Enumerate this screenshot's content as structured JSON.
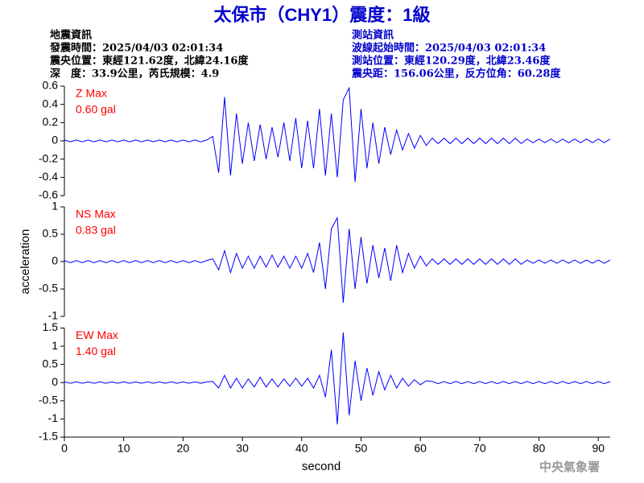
{
  "title": "太保市（CHY1）震度：1級",
  "info_left": [
    "地震資訊",
    "發震時間：2025/04/03 02:01:34",
    "震央位置：東經121.62度，北緯24.16度",
    "深　度：33.9公里，芮氏規模：4.9"
  ],
  "info_right": [
    "測站資訊",
    "波線起始時間：2025/04/03 02:01:34",
    "測站位置：東經120.29度，北緯23.46度",
    "震央距：156.06公里，反方位角：60.28度"
  ],
  "footer": "中央氣象署",
  "chart_data": [
    {
      "type": "line",
      "annotations": [
        "Z Max",
        "0.60 gal"
      ],
      "color": "#0000ff",
      "annotation_color": "#ff0000",
      "xlim": [
        0,
        92
      ],
      "ylim": [
        -0.6,
        0.6
      ],
      "yticks": [
        -0.6,
        -0.4,
        -0.2,
        0,
        0.2,
        0.4,
        0.6
      ],
      "x": [
        0,
        1,
        2,
        3,
        4,
        5,
        6,
        7,
        8,
        9,
        10,
        11,
        12,
        13,
        14,
        15,
        16,
        17,
        18,
        19,
        20,
        21,
        22,
        23,
        24,
        25,
        26,
        27,
        28,
        29,
        30,
        31,
        32,
        33,
        34,
        35,
        36,
        37,
        38,
        39,
        40,
        41,
        42,
        43,
        44,
        45,
        46,
        47,
        48,
        49,
        50,
        51,
        52,
        53,
        54,
        55,
        56,
        57,
        58,
        59,
        60,
        61,
        62,
        63,
        64,
        65,
        66,
        67,
        68,
        69,
        70,
        71,
        72,
        73,
        74,
        75,
        76,
        77,
        78,
        79,
        80,
        81,
        82,
        83,
        84,
        85,
        86,
        87,
        88,
        89,
        90,
        91,
        92
      ],
      "values": [
        0.01,
        -0.01,
        0.01,
        -0.01,
        0.01,
        -0.01,
        0.01,
        -0.01,
        0.01,
        -0.01,
        0.01,
        -0.01,
        0.01,
        -0.01,
        0.01,
        -0.01,
        0.01,
        -0.01,
        0.01,
        -0.01,
        0.01,
        -0.01,
        0.01,
        -0.01,
        0.01,
        0.05,
        -0.35,
        0.48,
        -0.38,
        0.3,
        -0.25,
        0.2,
        -0.22,
        0.18,
        -0.2,
        0.15,
        -0.18,
        0.2,
        -0.22,
        0.25,
        -0.3,
        0.22,
        -0.3,
        0.35,
        -0.38,
        0.3,
        -0.4,
        0.45,
        0.58,
        -0.45,
        0.35,
        -0.3,
        0.2,
        -0.25,
        0.15,
        -0.15,
        0.12,
        -0.1,
        0.08,
        -0.08,
        0.06,
        -0.05,
        0.03,
        -0.03,
        0.03,
        -0.03,
        0.03,
        -0.03,
        0.03,
        -0.03,
        0.03,
        -0.03,
        0.03,
        -0.03,
        0.03,
        -0.03,
        0.03,
        -0.03,
        0.02,
        -0.02,
        0.02,
        -0.02,
        0.02,
        -0.02,
        0.02,
        -0.02,
        0.02,
        -0.02,
        0.02,
        -0.02,
        0.02,
        -0.02,
        0.02
      ]
    },
    {
      "type": "line",
      "annotations": [
        "NS Max",
        "0.83 gal"
      ],
      "color": "#0000ff",
      "annotation_color": "#ff0000",
      "ylabel": "acceleration",
      "xlim": [
        0,
        92
      ],
      "ylim": [
        -1,
        1
      ],
      "yticks": [
        -1,
        -0.5,
        0,
        0.5,
        1
      ],
      "x": [
        0,
        1,
        2,
        3,
        4,
        5,
        6,
        7,
        8,
        9,
        10,
        11,
        12,
        13,
        14,
        15,
        16,
        17,
        18,
        19,
        20,
        21,
        22,
        23,
        24,
        25,
        26,
        27,
        28,
        29,
        30,
        31,
        32,
        33,
        34,
        35,
        36,
        37,
        38,
        39,
        40,
        41,
        42,
        43,
        44,
        45,
        46,
        47,
        48,
        49,
        50,
        51,
        52,
        53,
        54,
        55,
        56,
        57,
        58,
        59,
        60,
        61,
        62,
        63,
        64,
        65,
        66,
        67,
        68,
        69,
        70,
        71,
        72,
        73,
        74,
        75,
        76,
        77,
        78,
        79,
        80,
        81,
        82,
        83,
        84,
        85,
        86,
        87,
        88,
        89,
        90,
        91,
        92
      ],
      "values": [
        0.02,
        -0.02,
        0.02,
        -0.02,
        0.02,
        -0.02,
        0.02,
        -0.02,
        0.02,
        -0.02,
        0.02,
        -0.02,
        0.02,
        -0.02,
        0.02,
        -0.02,
        0.02,
        -0.02,
        0.02,
        -0.02,
        0.02,
        -0.02,
        0.02,
        -0.02,
        0.02,
        0.05,
        -0.15,
        0.2,
        -0.2,
        0.15,
        -0.12,
        0.1,
        -0.12,
        0.1,
        -0.1,
        0.12,
        -0.1,
        0.1,
        -0.12,
        0.1,
        -0.12,
        0.15,
        -0.2,
        0.35,
        -0.5,
        0.6,
        0.8,
        -0.75,
        0.6,
        -0.5,
        0.45,
        -0.4,
        0.3,
        -0.3,
        0.25,
        -0.35,
        0.3,
        -0.2,
        0.15,
        -0.12,
        0.1,
        -0.08,
        0.05,
        -0.05,
        0.05,
        -0.05,
        0.05,
        -0.05,
        0.05,
        -0.05,
        0.05,
        -0.05,
        0.05,
        -0.05,
        0.05,
        -0.05,
        0.05,
        -0.05,
        0.03,
        -0.03,
        0.03,
        -0.03,
        0.03,
        -0.03,
        0.03,
        -0.03,
        0.03,
        -0.03,
        0.03,
        -0.03,
        0.03,
        -0.03,
        0.03
      ]
    },
    {
      "type": "line",
      "annotations": [
        "EW Max",
        "1.40 gal"
      ],
      "color": "#0000ff",
      "annotation_color": "#ff0000",
      "xlabel": "second",
      "xlim": [
        0,
        92
      ],
      "xticks": [
        0,
        10,
        20,
        30,
        40,
        50,
        60,
        70,
        80,
        90
      ],
      "ylim": [
        -1.5,
        1.5
      ],
      "yticks": [
        -1.5,
        -1,
        -0.5,
        0,
        0.5,
        1,
        1.5
      ],
      "x": [
        0,
        1,
        2,
        3,
        4,
        5,
        6,
        7,
        8,
        9,
        10,
        11,
        12,
        13,
        14,
        15,
        16,
        17,
        18,
        19,
        20,
        21,
        22,
        23,
        24,
        25,
        26,
        27,
        28,
        29,
        30,
        31,
        32,
        33,
        34,
        35,
        36,
        37,
        38,
        39,
        40,
        41,
        42,
        43,
        44,
        45,
        46,
        47,
        48,
        49,
        50,
        51,
        52,
        53,
        54,
        55,
        56,
        57,
        58,
        59,
        60,
        61,
        62,
        63,
        64,
        65,
        66,
        67,
        68,
        69,
        70,
        71,
        72,
        73,
        74,
        75,
        76,
        77,
        78,
        79,
        80,
        81,
        82,
        83,
        84,
        85,
        86,
        87,
        88,
        89,
        90,
        91,
        92
      ],
      "values": [
        0.02,
        -0.02,
        0.02,
        -0.02,
        0.02,
        -0.02,
        0.02,
        -0.02,
        0.02,
        -0.02,
        0.02,
        -0.02,
        0.02,
        -0.02,
        0.02,
        -0.02,
        0.02,
        -0.02,
        0.02,
        -0.02,
        0.02,
        -0.02,
        0.02,
        -0.02,
        0.02,
        0.03,
        -0.15,
        0.2,
        -0.15,
        0.12,
        -0.15,
        0.1,
        -0.12,
        0.15,
        -0.12,
        0.1,
        -0.12,
        0.1,
        -0.1,
        0.12,
        -0.1,
        0.12,
        -0.15,
        0.2,
        -0.4,
        0.9,
        -1.15,
        1.38,
        -0.9,
        0.6,
        -0.5,
        0.4,
        -0.35,
        0.3,
        -0.2,
        0.2,
        -0.15,
        0.12,
        -0.1,
        0.08,
        -0.06,
        0.05,
        0.03,
        -0.03,
        0.03,
        -0.03,
        0.03,
        -0.03,
        0.03,
        -0.03,
        0.03,
        -0.03,
        0.03,
        -0.03,
        0.03,
        -0.03,
        0.03,
        -0.03,
        0.03,
        -0.03,
        0.03,
        -0.03,
        0.03,
        -0.03,
        0.03,
        -0.03,
        0.03,
        -0.03,
        0.03,
        -0.03,
        0.03,
        -0.03,
        0.03
      ]
    }
  ]
}
